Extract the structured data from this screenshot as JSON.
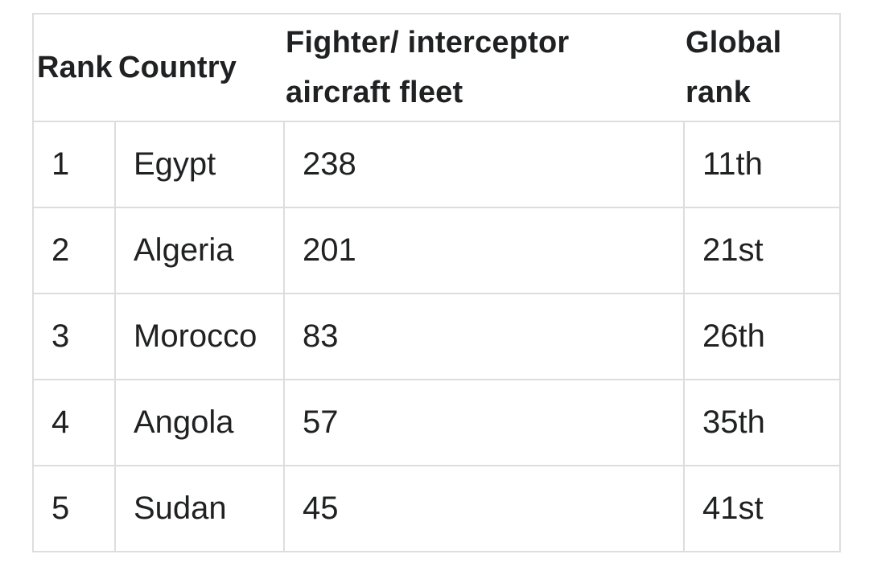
{
  "table": {
    "headers": {
      "rank": "Rank",
      "country": "Country",
      "fleet_line1": "Fighter/ interceptor",
      "fleet_line2": "aircraft fleet",
      "global_line1": "Global",
      "global_line2": "rank"
    },
    "rows": [
      {
        "rank": "1",
        "country": "Egypt",
        "fleet": "238",
        "global": "11th"
      },
      {
        "rank": "2",
        "country": "Algeria",
        "fleet": "201",
        "global": "21st"
      },
      {
        "rank": "3",
        "country": "Morocco",
        "fleet": "83",
        "global": "26th"
      },
      {
        "rank": "4",
        "country": "Angola",
        "fleet": "57",
        "global": "35th"
      },
      {
        "rank": "5",
        "country": "Sudan",
        "fleet": "45",
        "global": "41st"
      }
    ]
  }
}
